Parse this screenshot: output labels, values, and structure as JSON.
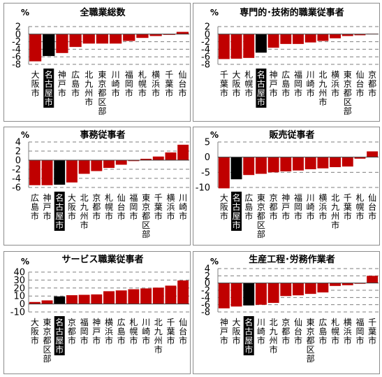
{
  "chart_data": [
    {
      "type": "bar",
      "title": "全職業総数",
      "unit": "%",
      "ylim": [
        -8,
        2
      ],
      "yticks": [
        2,
        0,
        -2,
        -4,
        -6,
        -8
      ],
      "highlight": "名古屋市",
      "colors": {
        "bar": "#c00000",
        "highlight": "#000000"
      },
      "categories": [
        "大阪市",
        "名古屋市",
        "神戸市",
        "広島市",
        "北九州市",
        "東京都区部",
        "川崎市",
        "福岡市",
        "札幌市",
        "横浜市",
        "千葉市",
        "仙台市"
      ],
      "values": [
        -7.2,
        -5.8,
        -5.0,
        -3.4,
        -2.5,
        -2.5,
        -2.5,
        -1.8,
        -1.0,
        -0.5,
        -0.2,
        0.6
      ]
    },
    {
      "type": "bar",
      "title": "専門的･技術的職業従事者",
      "unit": "%",
      "ylim": [
        -8,
        2
      ],
      "yticks": [
        2,
        0,
        -2,
        -4,
        -6,
        -8
      ],
      "highlight": "名古屋市",
      "colors": {
        "bar": "#c00000",
        "highlight": "#000000"
      },
      "categories": [
        "千葉市",
        "大阪市",
        "札幌市",
        "名古屋市",
        "神戸市",
        "広島市",
        "福岡市",
        "川崎市",
        "北九州市",
        "横浜市",
        "東京都区部",
        "仙台市",
        "京都市"
      ],
      "values": [
        -6.6,
        -6.5,
        -6.3,
        -4.9,
        -3.6,
        -2.6,
        -2.6,
        -2.2,
        -1.8,
        -1.1,
        -0.5,
        -0.3,
        0.1
      ]
    },
    {
      "type": "bar",
      "title": "事務従事者",
      "unit": "%",
      "ylim": [
        -6,
        4
      ],
      "yticks": [
        4,
        2,
        0,
        -2,
        -4,
        -6
      ],
      "highlight": "名古屋市",
      "colors": {
        "bar": "#c00000",
        "highlight": "#000000"
      },
      "categories": [
        "広島市",
        "神戸市",
        "名古屋市",
        "大阪市",
        "北九州市",
        "京都市",
        "札幌市",
        "仙台市",
        "福岡市",
        "東京都区部",
        "千葉市",
        "横浜市",
        "川崎市"
      ],
      "values": [
        -5.5,
        -5.5,
        -5.4,
        -4.9,
        -3.0,
        -2.4,
        -1.7,
        -1.0,
        -0.2,
        0.3,
        0.8,
        1.7,
        3.4
      ]
    },
    {
      "type": "bar",
      "title": "販売従事者",
      "unit": "%",
      "ylim": [
        -10,
        5
      ],
      "yticks": [
        5,
        0,
        -5,
        -10
      ],
      "highlight": "名古屋市",
      "colors": {
        "bar": "#c00000",
        "highlight": "#000000"
      },
      "categories": [
        "大阪市",
        "名古屋市",
        "広島市",
        "東京都区部",
        "京都市",
        "神戸市",
        "福岡市",
        "川崎市",
        "横浜市",
        "北九州市",
        "千葉市",
        "札幌市",
        "仙台市"
      ],
      "values": [
        -10.3,
        -7.3,
        -5.9,
        -5.5,
        -5.0,
        -4.7,
        -4.4,
        -4.0,
        -3.7,
        -3.3,
        -3.1,
        -0.5,
        1.9
      ]
    },
    {
      "type": "bar",
      "title": "サービス職業従事者",
      "unit": "%",
      "ylim": [
        -10,
        40
      ],
      "yticks": [
        40,
        30,
        20,
        10,
        0,
        -10
      ],
      "highlight": "名古屋市",
      "colors": {
        "bar": "#c00000",
        "highlight": "#000000"
      },
      "categories": [
        "大阪市",
        "東京都区部",
        "名古屋市",
        "京都市",
        "福岡市",
        "神戸市",
        "横浜市",
        "広島市",
        "札幌市",
        "川崎市",
        "北九州市",
        "千葉市",
        "仙台市"
      ],
      "values": [
        2.5,
        4.5,
        9.5,
        11,
        11.5,
        12,
        16,
        17,
        18.5,
        19.5,
        20.5,
        23,
        29.5
      ]
    },
    {
      "type": "bar",
      "title": "生産工程･労務作業者",
      "unit": "%",
      "ylim": [
        -8,
        4
      ],
      "yticks": [
        4,
        2,
        0,
        -2,
        -4,
        -6,
        -8
      ],
      "highlight": "名古屋市",
      "colors": {
        "bar": "#c00000",
        "highlight": "#000000"
      },
      "categories": [
        "神戸市",
        "大阪市",
        "名古屋市",
        "川崎市",
        "北九州市",
        "京都市",
        "仙台市",
        "東京都区部",
        "広島市",
        "札幌市",
        "横浜市",
        "福岡市",
        "千葉市"
      ],
      "values": [
        -7.0,
        -6.5,
        -6.2,
        -6.0,
        -5.5,
        -3.6,
        -3.4,
        -3.0,
        -2.6,
        -0.8,
        -0.6,
        -0.2,
        2.0
      ]
    }
  ]
}
